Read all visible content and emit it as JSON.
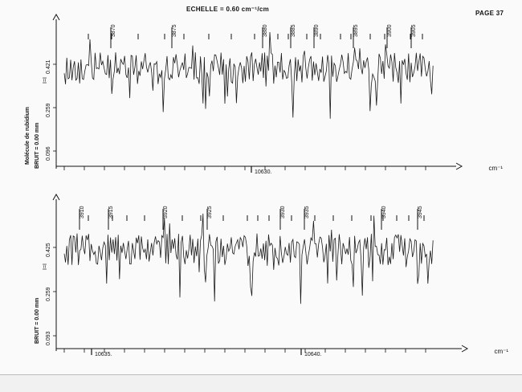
{
  "header": {
    "scale_label": "ECHELLE = 0.60 cm⁻¹/cm",
    "page_label": "PAGE 37"
  },
  "side_labels": {
    "molecule": "Molécule de rubidium",
    "bruit_top": "BRUIT = 0.00 mm",
    "bruit_bottom": "BRUIT = 0.00 mm"
  },
  "chart_data": [
    {
      "type": "line",
      "unit": "cm⁻¹",
      "x_tick_labels": [
        "10630."
      ],
      "y_tick_labels": [
        "0.096",
        "0.259",
        "0.421"
      ],
      "y_axis_mark": "I=I",
      "line_numbers": [
        "3870",
        "3875",
        "3880",
        "3885",
        "3890",
        "3895",
        "3900",
        "3905"
      ]
    },
    {
      "type": "line",
      "unit": "cm⁻¹",
      "x_tick_labels": [
        "10635.",
        "10640."
      ],
      "y_tick_labels": [
        "0.093",
        "0.259",
        "0.425"
      ],
      "y_axis_mark": "I=I",
      "line_numbers": [
        "3910",
        "3915",
        "3920",
        "3925",
        "3930",
        "3935",
        "3940",
        "3945"
      ]
    }
  ]
}
